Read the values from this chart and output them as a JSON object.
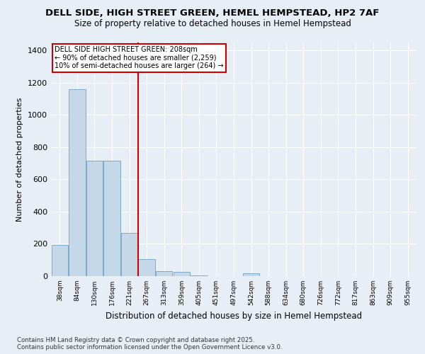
{
  "title_line1": "DELL SIDE, HIGH STREET GREEN, HEMEL HEMPSTEAD, HP2 7AF",
  "title_line2": "Size of property relative to detached houses in Hemel Hempstead",
  "xlabel": "Distribution of detached houses by size in Hemel Hempstead",
  "ylabel": "Number of detached properties",
  "bar_color": "#c5d8e8",
  "bar_edgecolor": "#7baac9",
  "annotation_box_color": "#cc0000",
  "vline_color": "#cc0000",
  "annotation_title": "DELL SIDE HIGH STREET GREEN: 208sqm",
  "annotation_line2": "← 90% of detached houses are smaller (2,259)",
  "annotation_line3": "10% of semi-detached houses are larger (264) →",
  "bins": [
    "38sqm",
    "84sqm",
    "130sqm",
    "176sqm",
    "221sqm",
    "267sqm",
    "313sqm",
    "359sqm",
    "405sqm",
    "451sqm",
    "497sqm",
    "542sqm",
    "588sqm",
    "634sqm",
    "680sqm",
    "726sqm",
    "772sqm",
    "817sqm",
    "863sqm",
    "909sqm",
    "955sqm"
  ],
  "values": [
    195,
    1160,
    715,
    715,
    270,
    105,
    30,
    25,
    5,
    0,
    0,
    18,
    0,
    0,
    0,
    0,
    0,
    0,
    0,
    0,
    0
  ],
  "vline_pos": 4.5,
  "ylim": [
    0,
    1450
  ],
  "yticks": [
    0,
    200,
    400,
    600,
    800,
    1000,
    1200,
    1400
  ],
  "footnote": "Contains HM Land Registry data © Crown copyright and database right 2025.\nContains public sector information licensed under the Open Government Licence v3.0.",
  "background_color": "#e8eef5",
  "plot_bg_color": "#e8eef5"
}
